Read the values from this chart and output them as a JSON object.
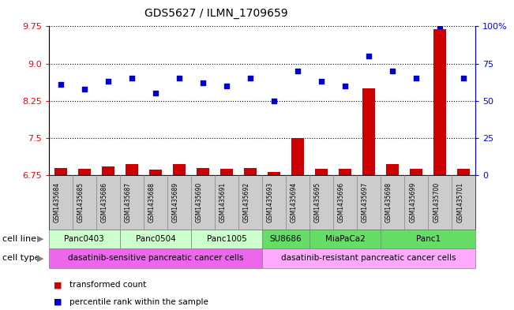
{
  "title": "GDS5627 / ILMN_1709659",
  "samples": [
    "GSM1435684",
    "GSM1435685",
    "GSM1435686",
    "GSM1435687",
    "GSM1435688",
    "GSM1435689",
    "GSM1435690",
    "GSM1435691",
    "GSM1435692",
    "GSM1435693",
    "GSM1435694",
    "GSM1435695",
    "GSM1435696",
    "GSM1435697",
    "GSM1435698",
    "GSM1435699",
    "GSM1435700",
    "GSM1435701"
  ],
  "transformed_count": [
    6.9,
    6.88,
    6.93,
    6.97,
    6.86,
    6.97,
    6.9,
    6.87,
    6.9,
    6.82,
    7.5,
    6.87,
    6.88,
    8.5,
    6.97,
    6.87,
    9.7,
    6.87
  ],
  "percentile_rank": [
    61,
    58,
    63,
    65,
    55,
    65,
    62,
    60,
    65,
    50,
    70,
    63,
    60,
    80,
    70,
    65,
    100,
    65
  ],
  "cell_lines": [
    {
      "name": "Panc0403",
      "start": 0,
      "end": 2,
      "color": "#ccffcc"
    },
    {
      "name": "Panc0504",
      "start": 3,
      "end": 5,
      "color": "#ccffcc"
    },
    {
      "name": "Panc1005",
      "start": 6,
      "end": 8,
      "color": "#ccffcc"
    },
    {
      "name": "SU8686",
      "start": 9,
      "end": 10,
      "color": "#66dd66"
    },
    {
      "name": "MiaPaCa2",
      "start": 11,
      "end": 13,
      "color": "#66dd66"
    },
    {
      "name": "Panc1",
      "start": 14,
      "end": 17,
      "color": "#66dd66"
    }
  ],
  "cell_types": [
    {
      "name": "dasatinib-sensitive pancreatic cancer cells",
      "start": 0,
      "end": 8,
      "color": "#ee66ee"
    },
    {
      "name": "dasatinib-resistant pancreatic cancer cells",
      "start": 9,
      "end": 17,
      "color": "#ffaaff"
    }
  ],
  "ylim_left": [
    6.75,
    9.75
  ],
  "ylim_right": [
    0,
    100
  ],
  "yticks_left": [
    6.75,
    7.5,
    8.25,
    9.0,
    9.75
  ],
  "yticks_right": [
    0,
    25,
    50,
    75,
    100
  ],
  "bar_color": "#cc0000",
  "dot_color": "#0000cc",
  "xticklabel_bg": "#cccccc",
  "background_color": "#ffffff"
}
